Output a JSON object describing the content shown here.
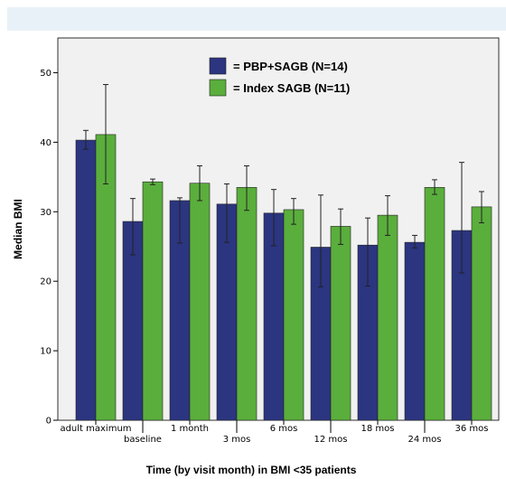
{
  "chart_data": {
    "type": "bar",
    "title": "",
    "xlabel": "Time (by visit month) in BMI <35 patients",
    "ylabel": "Median BMI",
    "ylim": [
      0,
      55
    ],
    "yticks": [
      0,
      10,
      20,
      30,
      40,
      50
    ],
    "categories": [
      "adult maximum",
      "baseline",
      "1 month",
      "3 mos",
      "6 mos",
      "12 mos",
      "18 mos",
      "24 mos",
      "36 mos"
    ],
    "series": [
      {
        "name": "= PBP+SAGB (N=14)",
        "color": "#2b3580",
        "values": [
          40.3,
          28.6,
          31.6,
          31.1,
          29.8,
          24.9,
          25.2,
          25.6,
          27.3
        ],
        "error_low": [
          39.0,
          23.8,
          25.5,
          25.6,
          25.1,
          19.2,
          19.3,
          24.8,
          21.2
        ],
        "error_high": [
          41.7,
          31.9,
          32.0,
          34.0,
          33.2,
          32.4,
          29.1,
          26.6,
          37.1
        ]
      },
      {
        "name": "= Index SAGB (N=11)",
        "color": "#5aae3c",
        "values": [
          41.1,
          34.3,
          34.1,
          33.5,
          30.3,
          27.9,
          29.5,
          33.5,
          30.7
        ],
        "error_low": [
          34.0,
          33.9,
          31.6,
          30.2,
          28.2,
          25.3,
          26.6,
          32.5,
          28.4
        ],
        "error_high": [
          48.3,
          34.7,
          36.6,
          36.6,
          31.9,
          30.4,
          32.3,
          34.6,
          32.9
        ]
      }
    ],
    "legend_position": "top-center",
    "grid": false
  }
}
